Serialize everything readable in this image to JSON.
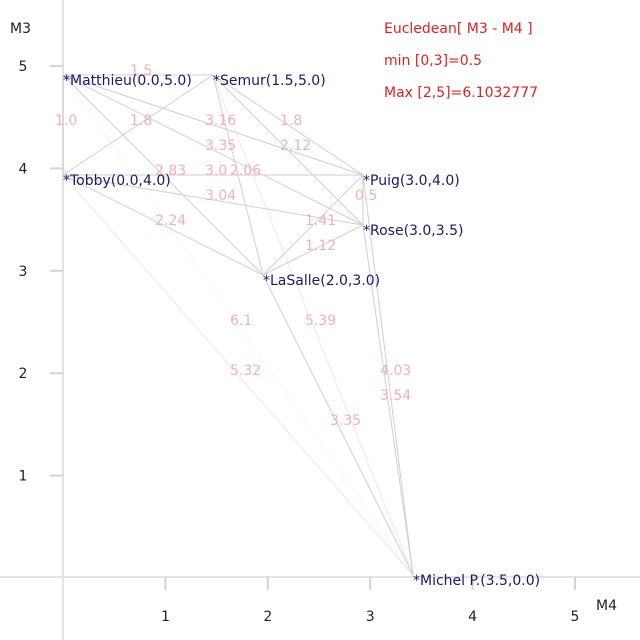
{
  "chart_data": {
    "type": "scatter",
    "title": "Eucledean[ M3 - M4 ]",
    "min_text": "min [0,3]=0.5",
    "max_text": "Max [2,5]=6.1032777",
    "xlabel": "M4",
    "ylabel": "M3",
    "xlim": [
      0,
      5.6
    ],
    "ylim": [
      0,
      5.6
    ],
    "grid": false,
    "x_ticks": [
      {
        "value": 1,
        "label": "1"
      },
      {
        "value": 2,
        "label": "2"
      },
      {
        "value": 3,
        "label": "3"
      },
      {
        "value": 4,
        "label": "4"
      },
      {
        "value": 5,
        "label": "5"
      }
    ],
    "y_ticks": [
      {
        "value": 1,
        "label": "1"
      },
      {
        "value": 2,
        "label": "2"
      },
      {
        "value": 3,
        "label": "3"
      },
      {
        "value": 4,
        "label": "4"
      },
      {
        "value": 5,
        "label": "5"
      }
    ],
    "points": [
      {
        "label": "*Matthieu(0.0,5.0)",
        "x": 0.0,
        "y": 5.0
      },
      {
        "label": "*Semur(1.5,5.0)",
        "x": 1.5,
        "y": 5.0
      },
      {
        "label": "*Tobby(0.0,4.0)",
        "x": 0.0,
        "y": 4.0
      },
      {
        "label": "*Puig(3.0,4.0)",
        "x": 3.0,
        "y": 4.0
      },
      {
        "label": "*Rose(3.0,3.5)",
        "x": 3.0,
        "y": 3.5
      },
      {
        "label": "*LaSalle(2.0,3.0)",
        "x": 2.0,
        "y": 3.0
      },
      {
        "label": "*Michel P.(3.5,0.0)",
        "x": 3.5,
        "y": 0.0
      }
    ],
    "edges": [
      {
        "a": 0,
        "b": 1,
        "label": "1.5"
      },
      {
        "a": 0,
        "b": 2,
        "label": "1.0"
      },
      {
        "a": 0,
        "b": 3,
        "label": "3.16"
      },
      {
        "a": 0,
        "b": 4,
        "label": "3.35"
      },
      {
        "a": 0,
        "b": 5,
        "label": "2.83"
      },
      {
        "a": 0,
        "b": 6,
        "label": "6.1"
      },
      {
        "a": 1,
        "b": 2,
        "label": "1.8"
      },
      {
        "a": 1,
        "b": 3,
        "label": "1.8"
      },
      {
        "a": 1,
        "b": 4,
        "label": "2.12"
      },
      {
        "a": 1,
        "b": 5,
        "label": "2.06"
      },
      {
        "a": 1,
        "b": 6,
        "label": "5.39"
      },
      {
        "a": 2,
        "b": 3,
        "label": "3.0"
      },
      {
        "a": 2,
        "b": 4,
        "label": "3.04"
      },
      {
        "a": 2,
        "b": 5,
        "label": "2.24"
      },
      {
        "a": 2,
        "b": 6,
        "label": "5.32"
      },
      {
        "a": 3,
        "b": 4,
        "label": "0.5"
      },
      {
        "a": 3,
        "b": 5,
        "label": "1.41"
      },
      {
        "a": 3,
        "b": 6,
        "label": "4.03"
      },
      {
        "a": 4,
        "b": 5,
        "label": "1.12"
      },
      {
        "a": 4,
        "b": 6,
        "label": "3.54"
      },
      {
        "a": 5,
        "b": 6,
        "label": "3.35"
      }
    ]
  },
  "colors": {
    "point_label": "#19196a",
    "edge_label": "#f3b1b1",
    "edge_line": "#cccccc",
    "info_text": "#e61e1e",
    "axis": "#e4e4e4",
    "tick_text": "#222222"
  }
}
